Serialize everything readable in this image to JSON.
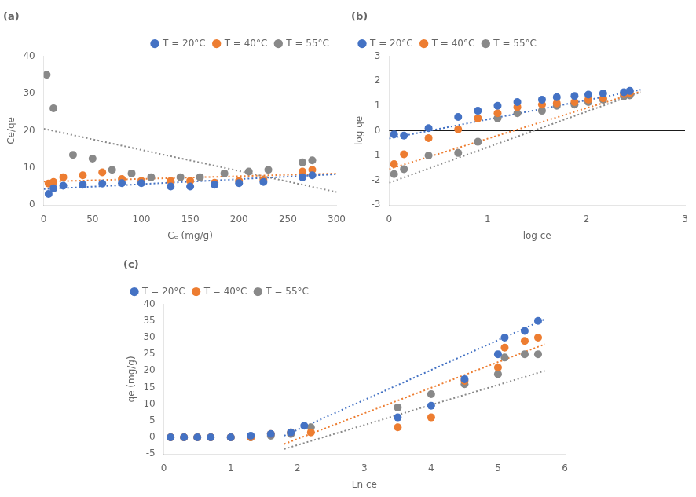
{
  "chart_data": [
    {
      "type": "scatter",
      "title": "(a)",
      "x_label": "Cₑ (mg/g)",
      "y_label": "Ce/qe",
      "xlim": [
        0,
        300
      ],
      "ylim": [
        0,
        40
      ],
      "xticks": [
        0,
        50,
        100,
        150,
        200,
        250,
        300
      ],
      "yticks": [
        0,
        10,
        20,
        30,
        40
      ],
      "grid": false,
      "legend": "upper right",
      "series": [
        {
          "name": "T = 20°C",
          "type": "scatter",
          "color": "#4472C4",
          "x": [
            5,
            10,
            20,
            40,
            60,
            80,
            100,
            130,
            150,
            175,
            200,
            225,
            265,
            275
          ],
          "values": [
            3.0,
            4.5,
            5.2,
            5.5,
            5.8,
            5.9,
            5.9,
            5.0,
            5.0,
            5.5,
            5.9,
            6.2,
            7.5,
            8.0
          ]
        },
        {
          "name": "T = 40°C",
          "type": "scatter",
          "color": "#ED7D31",
          "x": [
            5,
            10,
            20,
            40,
            60,
            80,
            100,
            130,
            150,
            175,
            200,
            225,
            265,
            275
          ],
          "values": [
            5.8,
            6.2,
            7.5,
            8.0,
            8.8,
            7.0,
            6.5,
            6.5,
            6.5,
            6.0,
            6.5,
            6.8,
            9.0,
            9.5
          ]
        },
        {
          "name": "T = 55°C",
          "type": "scatter",
          "color": "#898989",
          "x": [
            3,
            10,
            30,
            50,
            70,
            90,
            110,
            140,
            160,
            185,
            210,
            230,
            265,
            275
          ],
          "values": [
            35.0,
            26.0,
            13.5,
            12.5,
            9.5,
            8.5,
            7.5,
            7.5,
            7.5,
            8.5,
            9.0,
            9.5,
            11.5,
            12.0
          ]
        },
        {
          "type": "line",
          "line_style": "dotted",
          "color": "#4472C4",
          "x": [
            0,
            300
          ],
          "values": [
            4.3,
            8.3
          ]
        },
        {
          "type": "line",
          "line_style": "dotted",
          "color": "#ED7D31",
          "x": [
            0,
            300
          ],
          "values": [
            6.3,
            8.5
          ]
        },
        {
          "type": "line",
          "line_style": "dotted",
          "color": "#898989",
          "x": [
            0,
            300
          ],
          "values": [
            20.5,
            3.5
          ]
        }
      ]
    },
    {
      "type": "scatter",
      "title": "(b)",
      "x_label": "log ce",
      "y_label": "log qe",
      "xlim": [
        0,
        3.0
      ],
      "ylim": [
        -3,
        3
      ],
      "xticks": [
        0,
        1,
        2,
        3
      ],
      "yticks": [
        -3,
        -2,
        -1,
        0,
        1,
        2,
        3
      ],
      "grid": false,
      "legend": "upper left",
      "hline": 0,
      "series": [
        {
          "name": "T = 20°C",
          "type": "scatter",
          "color": "#4472C4",
          "x": [
            0.05,
            0.15,
            0.4,
            0.7,
            0.9,
            1.1,
            1.3,
            1.55,
            1.7,
            1.88,
            2.02,
            2.17,
            2.38,
            2.44
          ],
          "values": [
            -0.15,
            -0.2,
            0.1,
            0.55,
            0.8,
            1.0,
            1.15,
            1.25,
            1.35,
            1.4,
            1.45,
            1.5,
            1.55,
            1.6
          ]
        },
        {
          "name": "T = 40°C",
          "type": "scatter",
          "color": "#ED7D31",
          "x": [
            0.05,
            0.15,
            0.4,
            0.7,
            0.9,
            1.1,
            1.3,
            1.55,
            1.7,
            1.88,
            2.02,
            2.17,
            2.38,
            2.44
          ],
          "values": [
            -1.35,
            -0.95,
            -0.3,
            0.05,
            0.5,
            0.7,
            0.95,
            1.05,
            1.1,
            1.15,
            1.25,
            1.3,
            1.48,
            1.52
          ]
        },
        {
          "name": "T = 55°C",
          "type": "scatter",
          "color": "#898989",
          "x": [
            0.05,
            0.15,
            0.4,
            0.7,
            0.9,
            1.1,
            1.3,
            1.55,
            1.7,
            1.88,
            2.02,
            2.17,
            2.38,
            2.44
          ],
          "values": [
            -1.75,
            -1.55,
            -1.0,
            -0.9,
            -0.45,
            0.5,
            0.7,
            0.8,
            1.0,
            1.05,
            1.15,
            1.25,
            1.38,
            1.42
          ]
        },
        {
          "type": "line",
          "line_style": "dotted",
          "color": "#4472C4",
          "x": [
            0.0,
            2.55
          ],
          "values": [
            -0.32,
            1.65
          ]
        },
        {
          "type": "line",
          "line_style": "dotted",
          "color": "#ED7D31",
          "x": [
            0.0,
            2.55
          ],
          "values": [
            -1.55,
            1.58
          ]
        },
        {
          "type": "line",
          "line_style": "dotted",
          "color": "#898989",
          "x": [
            0.0,
            2.55
          ],
          "values": [
            -2.1,
            1.55
          ]
        }
      ]
    },
    {
      "type": "scatter",
      "title": "(c)",
      "x_label": "Ln ce",
      "y_label": "qe (mg/g)",
      "xlim": [
        0,
        6
      ],
      "ylim": [
        -5,
        40
      ],
      "xticks": [
        0,
        1,
        2,
        3,
        4,
        5,
        6
      ],
      "yticks": [
        -5,
        0,
        5,
        10,
        15,
        20,
        25,
        30,
        35,
        40
      ],
      "grid": false,
      "legend": "upper left",
      "series": [
        {
          "name": "T = 20°C",
          "type": "scatter",
          "color": "#4472C4",
          "x": [
            0.1,
            0.3,
            0.5,
            0.7,
            1.0,
            1.3,
            1.6,
            1.9,
            2.1,
            3.5,
            4.0,
            4.5,
            5.0,
            5.1,
            5.4,
            5.6
          ],
          "values": [
            0.0,
            0.0,
            0.0,
            0.0,
            0.0,
            0.5,
            1.0,
            1.5,
            3.5,
            6.0,
            9.5,
            17.5,
            25.0,
            30.0,
            32.0,
            35.0
          ]
        },
        {
          "name": "T = 40°C",
          "type": "scatter",
          "color": "#ED7D31",
          "x": [
            0.1,
            0.3,
            0.5,
            0.7,
            1.0,
            1.3,
            1.6,
            1.9,
            2.2,
            3.5,
            4.0,
            4.5,
            5.0,
            5.1,
            5.4,
            5.6
          ],
          "values": [
            0.0,
            0.0,
            0.0,
            0.0,
            0.0,
            0.0,
            1.0,
            1.5,
            1.5,
            3.0,
            6.0,
            17.0,
            21.0,
            27.0,
            29.0,
            30.0
          ]
        },
        {
          "name": "T = 55°C",
          "type": "scatter",
          "color": "#898989",
          "x": [
            0.1,
            0.3,
            0.5,
            0.7,
            1.0,
            1.3,
            1.6,
            1.9,
            2.2,
            3.5,
            4.0,
            4.5,
            5.0,
            5.1,
            5.4,
            5.6
          ],
          "values": [
            0.0,
            0.0,
            0.0,
            0.0,
            0.0,
            0.0,
            0.5,
            1.0,
            3.0,
            9.0,
            13.0,
            16.0,
            19.0,
            24.0,
            25.0,
            25.0
          ]
        },
        {
          "type": "line",
          "line_style": "dotted",
          "color": "#4472C4",
          "x": [
            1.8,
            5.7
          ],
          "values": [
            0.5,
            35.5
          ]
        },
        {
          "type": "line",
          "line_style": "dotted",
          "color": "#ED7D31",
          "x": [
            1.8,
            5.7
          ],
          "values": [
            -2.0,
            28.0
          ]
        },
        {
          "type": "line",
          "line_style": "dotted",
          "color": "#898989",
          "x": [
            1.8,
            5.7
          ],
          "values": [
            -3.5,
            20.0
          ]
        }
      ]
    }
  ]
}
